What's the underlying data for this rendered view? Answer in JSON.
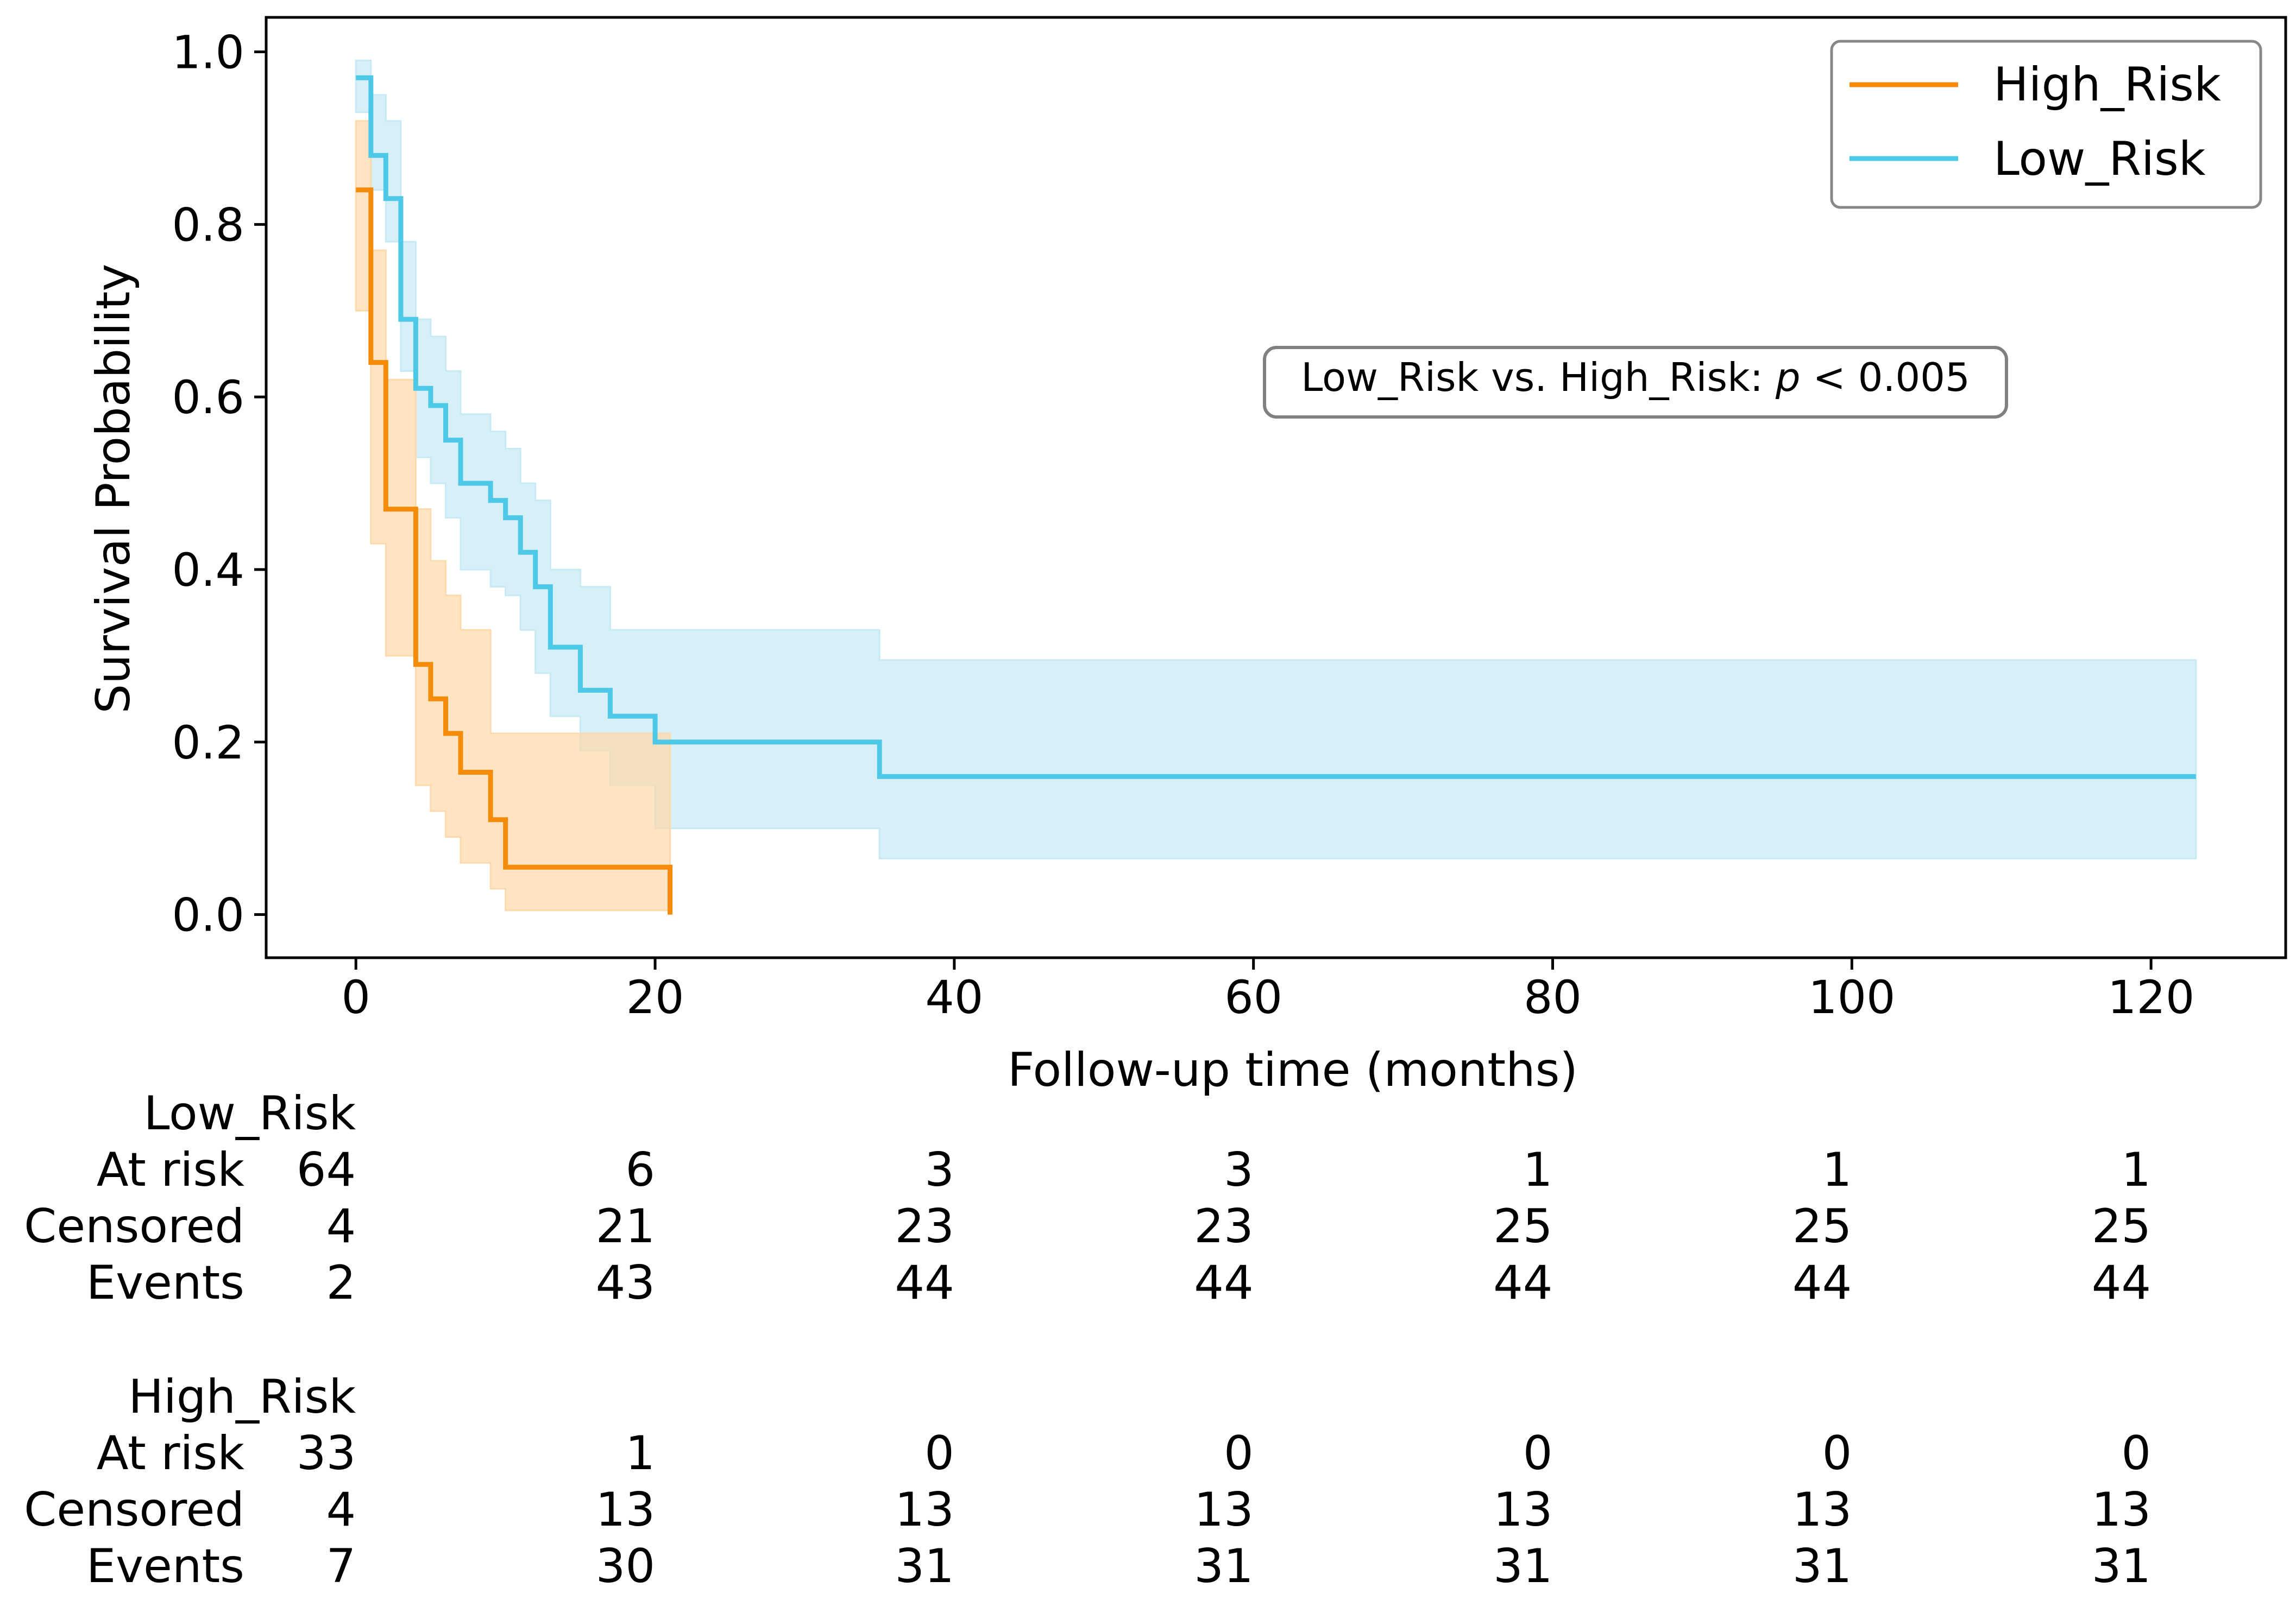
{
  "chart_data": {
    "type": "line",
    "subtype": "kaplan-meier",
    "title": "",
    "xlabel": "Follow-up time (months)",
    "ylabel": "Survival Probability",
    "xlim": [
      -6,
      129
    ],
    "ylim": [
      -0.05,
      1.04
    ],
    "xticks": [
      0,
      20,
      40,
      60,
      80,
      100,
      120
    ],
    "xtick_labels": [
      "0",
      "20",
      "40",
      "60",
      "80",
      "100",
      "120"
    ],
    "yticks": [
      0.0,
      0.2,
      0.4,
      0.6,
      0.8,
      1.0
    ],
    "ytick_labels": [
      "0.0",
      "0.2",
      "0.4",
      "0.6",
      "0.8",
      "1.0"
    ],
    "grid": false,
    "legend": {
      "position": "top-right",
      "entries": [
        "High_Risk",
        "Low_Risk"
      ]
    },
    "annotation": {
      "prefix": "Low_Risk vs. High_Risk: ",
      "p_symbol": "p",
      "suffix": " < 0.005"
    },
    "series": [
      {
        "name": "Low_Risk",
        "color": "#4DC8E6",
        "fill_color": "#C7EAF5",
        "x": [
          0,
          1,
          2,
          3,
          4,
          5,
          6,
          7,
          9,
          10,
          11,
          12,
          13,
          15,
          17,
          20,
          35,
          123
        ],
        "y": [
          0.97,
          0.88,
          0.83,
          0.69,
          0.61,
          0.59,
          0.55,
          0.5,
          0.48,
          0.46,
          0.42,
          0.38,
          0.31,
          0.26,
          0.23,
          0.2,
          0.16,
          0.16
        ],
        "ci_low": [
          0.93,
          0.84,
          0.78,
          0.63,
          0.53,
          0.5,
          0.46,
          0.4,
          0.38,
          0.37,
          0.33,
          0.28,
          0.23,
          0.19,
          0.15,
          0.1,
          0.065,
          0.065
        ],
        "ci_high": [
          0.99,
          0.95,
          0.92,
          0.78,
          0.69,
          0.67,
          0.63,
          0.58,
          0.56,
          0.54,
          0.5,
          0.48,
          0.4,
          0.38,
          0.33,
          0.33,
          0.295,
          0.295
        ]
      },
      {
        "name": "High_Risk",
        "color": "#F58B0A",
        "fill_color": "#FDD9AC",
        "x": [
          0,
          1,
          2,
          4,
          5,
          6,
          7,
          9,
          10,
          21
        ],
        "y": [
          0.84,
          0.64,
          0.47,
          0.29,
          0.25,
          0.21,
          0.165,
          0.11,
          0.055,
          0.0
        ],
        "ci_low": [
          0.7,
          0.43,
          0.3,
          0.15,
          0.12,
          0.09,
          0.06,
          0.03,
          0.005,
          0.0
        ],
        "ci_high": [
          0.92,
          0.77,
          0.62,
          0.47,
          0.41,
          0.37,
          0.33,
          0.21,
          0.21,
          0.0
        ]
      }
    ]
  },
  "risk_table": {
    "columns": [
      "0",
      "20",
      "40",
      "60",
      "80",
      "100",
      "120"
    ],
    "row_labels": [
      "At risk",
      "Censored",
      "Events"
    ],
    "groups": [
      {
        "name": "Low_Risk",
        "at_risk": [
          "64",
          "6",
          "3",
          "3",
          "1",
          "1",
          "1"
        ],
        "censored": [
          "4",
          "21",
          "23",
          "23",
          "25",
          "25",
          "25"
        ],
        "events": [
          "2",
          "43",
          "44",
          "44",
          "44",
          "44",
          "44"
        ]
      },
      {
        "name": "High_Risk",
        "at_risk": [
          "33",
          "1",
          "0",
          "0",
          "0",
          "0",
          "0"
        ],
        "censored": [
          "4",
          "13",
          "13",
          "13",
          "13",
          "13",
          "13"
        ],
        "events": [
          "7",
          "30",
          "31",
          "31",
          "31",
          "31",
          "31"
        ]
      }
    ]
  }
}
